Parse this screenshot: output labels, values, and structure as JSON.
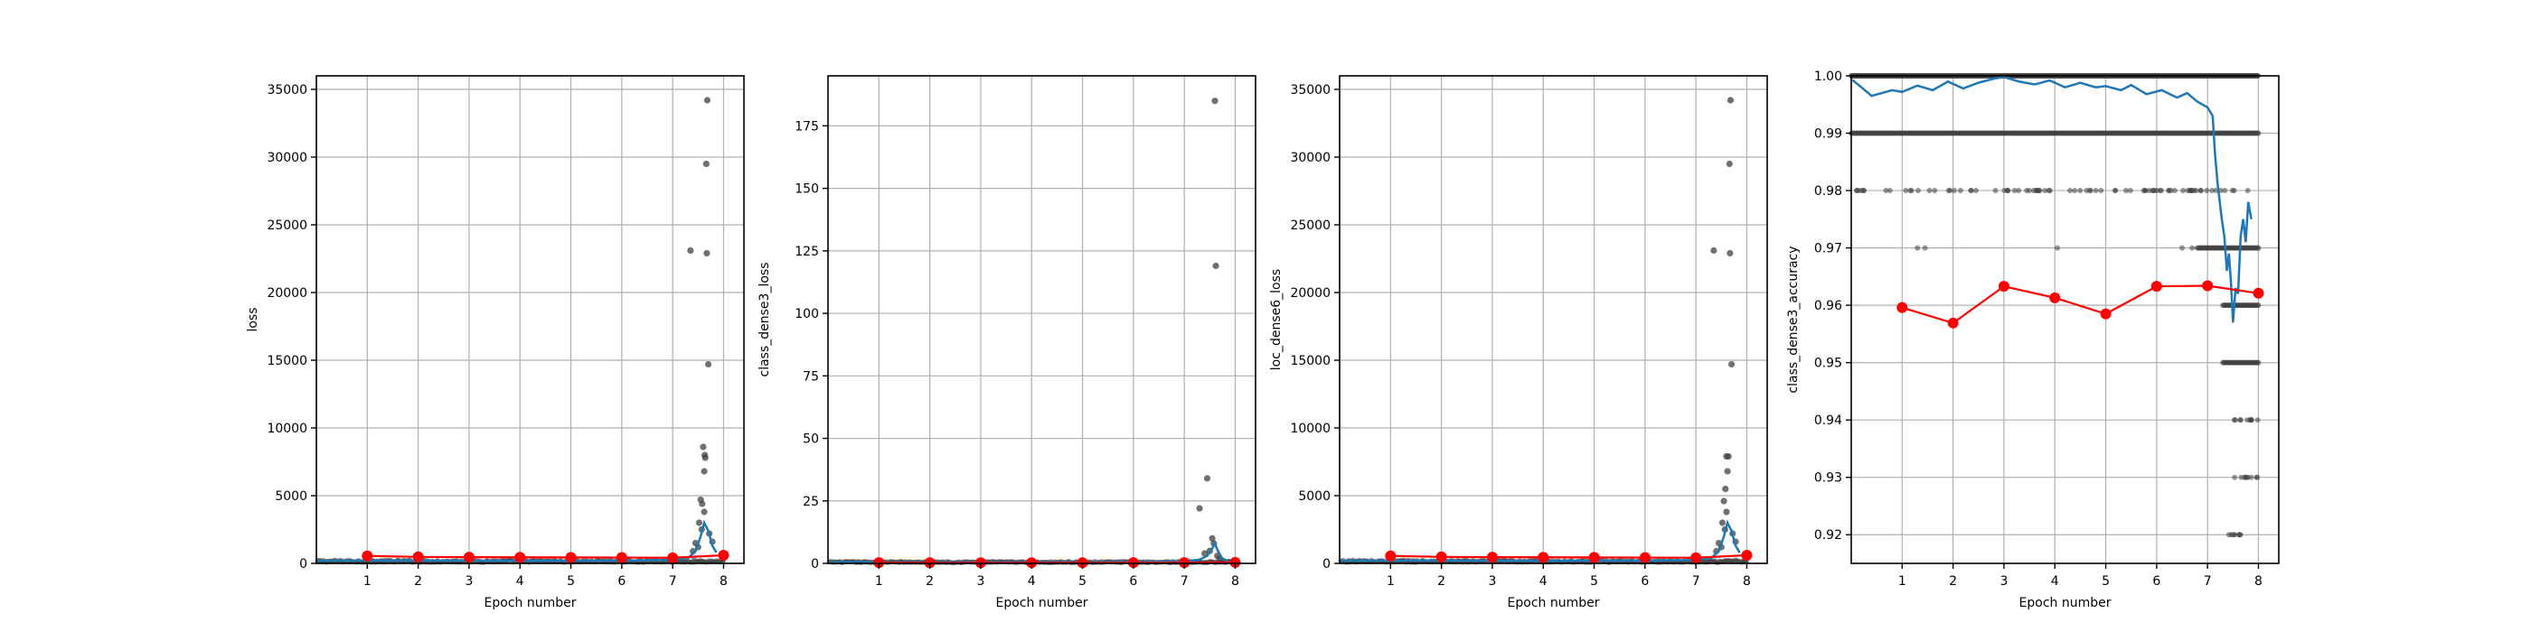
{
  "colors": {
    "scatter": "#404040",
    "running": "#1f77b4",
    "epoch": "#ff0000",
    "grid": "#b0b0b0"
  },
  "chart_data": [
    {
      "type": "scatter",
      "title": "",
      "xlabel": "Epoch number",
      "ylabel": "loss",
      "xlim": [
        0,
        8.4
      ],
      "ylim": [
        0,
        36000
      ],
      "xticks": [
        1,
        2,
        3,
        4,
        5,
        6,
        7,
        8
      ],
      "yticks": [
        0,
        5000,
        10000,
        15000,
        20000,
        25000,
        30000,
        35000
      ],
      "grid": true,
      "outliers": [
        {
          "x": 7.35,
          "y": 23100
        },
        {
          "x": 7.68,
          "y": 34200
        },
        {
          "x": 7.66,
          "y": 29500
        },
        {
          "x": 7.67,
          "y": 22900
        },
        {
          "x": 7.7,
          "y": 14700
        },
        {
          "x": 7.6,
          "y": 8600
        },
        {
          "x": 7.63,
          "y": 8000
        },
        {
          "x": 7.64,
          "y": 7800
        },
        {
          "x": 7.62,
          "y": 6800
        },
        {
          "x": 7.55,
          "y": 4700
        },
        {
          "x": 7.58,
          "y": 4400
        },
        {
          "x": 7.62,
          "y": 3800
        },
        {
          "x": 7.52,
          "y": 3000
        },
        {
          "x": 7.57,
          "y": 2500
        },
        {
          "x": 7.72,
          "y": 2200
        },
        {
          "x": 7.45,
          "y": 1500
        },
        {
          "x": 7.5,
          "y": 1200
        },
        {
          "x": 7.4,
          "y": 900
        },
        {
          "x": 7.78,
          "y": 1600
        }
      ],
      "base_level": 150,
      "running_mean": [
        {
          "x": 0.02,
          "y": 200
        },
        {
          "x": 1,
          "y": 220
        },
        {
          "x": 2,
          "y": 210
        },
        {
          "x": 3,
          "y": 200
        },
        {
          "x": 4,
          "y": 190
        },
        {
          "x": 5,
          "y": 200
        },
        {
          "x": 6,
          "y": 210
        },
        {
          "x": 7,
          "y": 250
        },
        {
          "x": 7.3,
          "y": 400
        },
        {
          "x": 7.45,
          "y": 900
        },
        {
          "x": 7.55,
          "y": 2000
        },
        {
          "x": 7.62,
          "y": 3000
        },
        {
          "x": 7.7,
          "y": 2400
        },
        {
          "x": 7.78,
          "y": 1300
        },
        {
          "x": 7.86,
          "y": 800
        }
      ],
      "epoch_values": [
        {
          "x": 1,
          "y": 550
        },
        {
          "x": 2,
          "y": 480
        },
        {
          "x": 3,
          "y": 460
        },
        {
          "x": 4,
          "y": 450
        },
        {
          "x": 5,
          "y": 440
        },
        {
          "x": 6,
          "y": 430
        },
        {
          "x": 7,
          "y": 420
        },
        {
          "x": 8,
          "y": 600
        }
      ]
    },
    {
      "type": "scatter",
      "title": "",
      "xlabel": "Epoch number",
      "ylabel": "class_dense3_loss",
      "xlim": [
        0,
        8.4
      ],
      "ylim": [
        0,
        195
      ],
      "xticks": [
        1,
        2,
        3,
        4,
        5,
        6,
        7,
        8
      ],
      "yticks": [
        0,
        25,
        50,
        75,
        100,
        125,
        150,
        175
      ],
      "grid": true,
      "outliers": [
        {
          "x": 7.6,
          "y": 185
        },
        {
          "x": 7.62,
          "y": 119
        },
        {
          "x": 7.45,
          "y": 34
        },
        {
          "x": 7.3,
          "y": 22
        },
        {
          "x": 7.55,
          "y": 10
        },
        {
          "x": 7.58,
          "y": 8
        },
        {
          "x": 7.5,
          "y": 5
        },
        {
          "x": 7.4,
          "y": 4
        },
        {
          "x": 7.65,
          "y": 3
        },
        {
          "x": 7.7,
          "y": 2
        }
      ],
      "base_level": 0.5,
      "running_mean": [
        {
          "x": 0.02,
          "y": 0.5
        },
        {
          "x": 2,
          "y": 0.5
        },
        {
          "x": 4,
          "y": 0.5
        },
        {
          "x": 6,
          "y": 0.6
        },
        {
          "x": 7,
          "y": 0.8
        },
        {
          "x": 7.3,
          "y": 1.5
        },
        {
          "x": 7.45,
          "y": 3
        },
        {
          "x": 7.55,
          "y": 6
        },
        {
          "x": 7.6,
          "y": 8
        },
        {
          "x": 7.66,
          "y": 5
        },
        {
          "x": 7.74,
          "y": 2
        },
        {
          "x": 7.86,
          "y": 1
        }
      ],
      "epoch_values": [
        {
          "x": 1,
          "y": 0.3
        },
        {
          "x": 2,
          "y": 0.25
        },
        {
          "x": 3,
          "y": 0.25
        },
        {
          "x": 4,
          "y": 0.25
        },
        {
          "x": 5,
          "y": 0.25
        },
        {
          "x": 6,
          "y": 0.3
        },
        {
          "x": 7,
          "y": 0.3
        },
        {
          "x": 8,
          "y": 0.4
        }
      ]
    },
    {
      "type": "scatter",
      "title": "",
      "xlabel": "Epoch number",
      "ylabel": "loc_dense6_loss",
      "xlim": [
        0,
        8.4
      ],
      "ylim": [
        0,
        36000
      ],
      "xticks": [
        1,
        2,
        3,
        4,
        5,
        6,
        7,
        8
      ],
      "yticks": [
        0,
        5000,
        10000,
        15000,
        20000,
        25000,
        30000,
        35000
      ],
      "grid": true,
      "outliers": [
        {
          "x": 7.35,
          "y": 23100
        },
        {
          "x": 7.68,
          "y": 34200
        },
        {
          "x": 7.66,
          "y": 29500
        },
        {
          "x": 7.67,
          "y": 22900
        },
        {
          "x": 7.7,
          "y": 14700
        },
        {
          "x": 7.6,
          "y": 7900
        },
        {
          "x": 7.64,
          "y": 7900
        },
        {
          "x": 7.62,
          "y": 6800
        },
        {
          "x": 7.58,
          "y": 5500
        },
        {
          "x": 7.55,
          "y": 4600
        },
        {
          "x": 7.6,
          "y": 3800
        },
        {
          "x": 7.52,
          "y": 3000
        },
        {
          "x": 7.57,
          "y": 2500
        },
        {
          "x": 7.72,
          "y": 2200
        },
        {
          "x": 7.45,
          "y": 1500
        },
        {
          "x": 7.5,
          "y": 1200
        },
        {
          "x": 7.4,
          "y": 900
        },
        {
          "x": 7.78,
          "y": 1600
        }
      ],
      "base_level": 150,
      "running_mean": [
        {
          "x": 0.02,
          "y": 200
        },
        {
          "x": 1,
          "y": 220
        },
        {
          "x": 2,
          "y": 210
        },
        {
          "x": 3,
          "y": 200
        },
        {
          "x": 4,
          "y": 190
        },
        {
          "x": 5,
          "y": 200
        },
        {
          "x": 6,
          "y": 210
        },
        {
          "x": 7,
          "y": 250
        },
        {
          "x": 7.3,
          "y": 400
        },
        {
          "x": 7.45,
          "y": 900
        },
        {
          "x": 7.55,
          "y": 2000
        },
        {
          "x": 7.62,
          "y": 3000
        },
        {
          "x": 7.7,
          "y": 2400
        },
        {
          "x": 7.78,
          "y": 1300
        },
        {
          "x": 7.86,
          "y": 800
        }
      ],
      "epoch_values": [
        {
          "x": 1,
          "y": 550
        },
        {
          "x": 2,
          "y": 480
        },
        {
          "x": 3,
          "y": 460
        },
        {
          "x": 4,
          "y": 450
        },
        {
          "x": 5,
          "y": 440
        },
        {
          "x": 6,
          "y": 430
        },
        {
          "x": 7,
          "y": 420
        },
        {
          "x": 8,
          "y": 600
        }
      ]
    },
    {
      "type": "scatter",
      "title": "",
      "xlabel": "Epoch number",
      "ylabel": "class_dense3_accuracy",
      "xlim": [
        0,
        8.4
      ],
      "ylim": [
        0.915,
        1.0
      ],
      "xticks": [
        1,
        2,
        3,
        4,
        5,
        6,
        7,
        8
      ],
      "yticks": [
        0.92,
        0.93,
        0.94,
        0.95,
        0.96,
        0.97,
        0.98,
        0.99,
        1.0
      ],
      "ytick_labels": [
        "0.92",
        "0.93",
        "0.94",
        "0.95",
        "0.96",
        "0.97",
        "0.98",
        "0.99",
        "1.00"
      ],
      "grid": true,
      "level_bands": [
        {
          "y": 1.0,
          "from": 0.0,
          "to": 8.0,
          "density": "full"
        },
        {
          "y": 0.99,
          "from": 0.0,
          "to": 8.0,
          "density": "dense"
        },
        {
          "y": 0.98,
          "from": 0.1,
          "to": 8.0,
          "density": "sparse"
        },
        {
          "y": 0.97,
          "from": 6.8,
          "to": 8.0,
          "density": "dense"
        },
        {
          "y": 0.96,
          "from": 7.3,
          "to": 8.0,
          "density": "dense"
        },
        {
          "y": 0.95,
          "from": 7.3,
          "to": 8.0,
          "density": "dense"
        },
        {
          "y": 0.94,
          "from": 7.4,
          "to": 8.0,
          "density": "sparse"
        },
        {
          "y": 0.93,
          "from": 7.5,
          "to": 8.0,
          "density": "sparse"
        },
        {
          "y": 0.92,
          "from": 7.4,
          "to": 7.7,
          "density": "sparse"
        }
      ],
      "isolated_points": [
        {
          "x": 1.3,
          "y": 0.97
        },
        {
          "x": 1.45,
          "y": 0.97
        },
        {
          "x": 4.05,
          "y": 0.97
        },
        {
          "x": 6.5,
          "y": 0.97
        },
        {
          "x": 6.7,
          "y": 0.97
        }
      ],
      "running_mean": [
        {
          "x": 0.02,
          "y": 0.9993
        },
        {
          "x": 0.2,
          "y": 0.998
        },
        {
          "x": 0.4,
          "y": 0.9965
        },
        {
          "x": 0.6,
          "y": 0.997
        },
        {
          "x": 0.8,
          "y": 0.9975
        },
        {
          "x": 1.0,
          "y": 0.9972
        },
        {
          "x": 1.3,
          "y": 0.9983
        },
        {
          "x": 1.6,
          "y": 0.9975
        },
        {
          "x": 1.9,
          "y": 0.999
        },
        {
          "x": 2.2,
          "y": 0.9978
        },
        {
          "x": 2.5,
          "y": 0.9988
        },
        {
          "x": 2.8,
          "y": 0.9995
        },
        {
          "x": 3.0,
          "y": 0.9998
        },
        {
          "x": 3.3,
          "y": 0.999
        },
        {
          "x": 3.6,
          "y": 0.9985
        },
        {
          "x": 3.9,
          "y": 0.9992
        },
        {
          "x": 4.2,
          "y": 0.998
        },
        {
          "x": 4.5,
          "y": 0.9988
        },
        {
          "x": 4.8,
          "y": 0.998
        },
        {
          "x": 5.0,
          "y": 0.9982
        },
        {
          "x": 5.3,
          "y": 0.9975
        },
        {
          "x": 5.5,
          "y": 0.9984
        },
        {
          "x": 5.8,
          "y": 0.9968
        },
        {
          "x": 6.1,
          "y": 0.9975
        },
        {
          "x": 6.4,
          "y": 0.9962
        },
        {
          "x": 6.6,
          "y": 0.997
        },
        {
          "x": 6.8,
          "y": 0.9955
        },
        {
          "x": 7.0,
          "y": 0.9945
        },
        {
          "x": 7.1,
          "y": 0.993
        },
        {
          "x": 7.15,
          "y": 0.986
        },
        {
          "x": 7.2,
          "y": 0.981
        },
        {
          "x": 7.28,
          "y": 0.975
        },
        {
          "x": 7.33,
          "y": 0.972
        },
        {
          "x": 7.38,
          "y": 0.966
        },
        {
          "x": 7.42,
          "y": 0.969
        },
        {
          "x": 7.46,
          "y": 0.964
        },
        {
          "x": 7.5,
          "y": 0.957
        },
        {
          "x": 7.55,
          "y": 0.963
        },
        {
          "x": 7.6,
          "y": 0.962
        },
        {
          "x": 7.65,
          "y": 0.972
        },
        {
          "x": 7.7,
          "y": 0.975
        },
        {
          "x": 7.75,
          "y": 0.971
        },
        {
          "x": 7.8,
          "y": 0.978
        },
        {
          "x": 7.86,
          "y": 0.975
        }
      ],
      "epoch_values": [
        {
          "x": 1,
          "y": 0.9596
        },
        {
          "x": 2,
          "y": 0.9569
        },
        {
          "x": 3,
          "y": 0.9633
        },
        {
          "x": 4,
          "y": 0.9613
        },
        {
          "x": 5,
          "y": 0.9585
        },
        {
          "x": 6,
          "y": 0.9633
        },
        {
          "x": 7,
          "y": 0.9634
        },
        {
          "x": 8,
          "y": 0.9621
        }
      ]
    }
  ]
}
